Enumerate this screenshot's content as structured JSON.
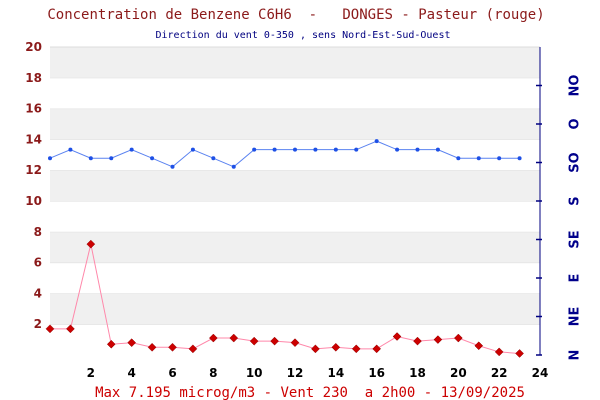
{
  "chart_data": {
    "type": "line",
    "title": "Concentration de Benzene C6H6  -   DONGES - Pasteur (rouge)",
    "subtitle": "Direction du vent 0-350 , sens Nord-Est-Sud-Ouest",
    "footer": "Max 7.195 microg/m3 - Vent 230  a 2h00 - 13/09/2025",
    "xlim": [
      0,
      24
    ],
    "ylim": [
      0,
      20
    ],
    "x_ticks": [
      "2",
      "4",
      "6",
      "8",
      "10",
      "12",
      "14",
      "16",
      "18",
      "20",
      "22",
      "24"
    ],
    "y_ticks": [
      "2",
      "4",
      "6",
      "8",
      "10",
      "12",
      "14",
      "16",
      "18",
      "20"
    ],
    "right_axis": {
      "range": [
        0,
        360
      ],
      "labels": [
        "N",
        "NE",
        "E",
        "SE",
        "S",
        "SO",
        "O",
        "NO"
      ]
    },
    "series": [
      {
        "axis": "left",
        "color": "#cc0000",
        "line_color": "#ff88aa",
        "x": [
          0,
          1,
          2,
          3,
          4,
          5,
          6,
          7,
          8,
          9,
          10,
          11,
          12,
          13,
          14,
          15,
          16,
          17,
          18,
          19,
          20,
          21,
          22,
          23
        ],
        "values": [
          1.7,
          1.7,
          7.2,
          0.7,
          0.8,
          0.5,
          0.5,
          0.4,
          1.1,
          1.1,
          0.9,
          0.9,
          0.8,
          0.4,
          0.5,
          0.4,
          0.4,
          1.2,
          0.9,
          1.0,
          1.1,
          0.6,
          0.2,
          0.1
        ]
      },
      {
        "axis": "right",
        "color": "#1e50e6",
        "line_color": "#5a82f0",
        "x": [
          0,
          1,
          2,
          3,
          4,
          5,
          6,
          7,
          8,
          9,
          10,
          11,
          12,
          13,
          14,
          15,
          16,
          17,
          18,
          19,
          20,
          21,
          22,
          23
        ],
        "values": [
          230,
          240,
          230,
          230,
          240,
          230,
          220,
          240,
          230,
          220,
          240,
          240,
          240,
          240,
          240,
          240,
          250,
          240,
          240,
          240,
          230,
          230,
          230,
          230
        ]
      }
    ],
    "colors": {
      "band": "#f0f0f0",
      "grid": "#dcdcdc",
      "axis": "#000080",
      "ytick": "#8b1a1a"
    }
  }
}
